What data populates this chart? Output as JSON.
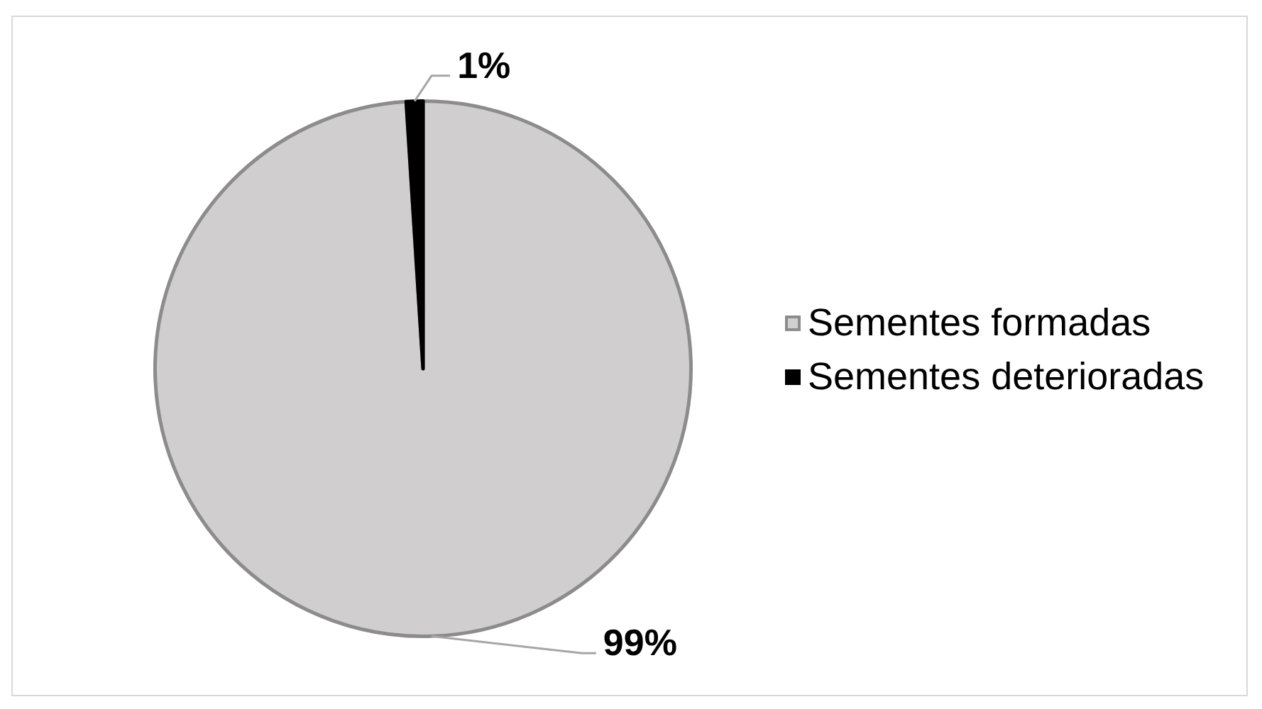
{
  "chart_data": {
    "type": "pie",
    "categories": [
      "Sementes formadas",
      "Sementes deterioradas"
    ],
    "values": [
      99,
      1
    ],
    "colors": [
      "#d0cece",
      "#000000"
    ],
    "value_labels": [
      "99%",
      "1%"
    ],
    "legend": "right"
  }
}
